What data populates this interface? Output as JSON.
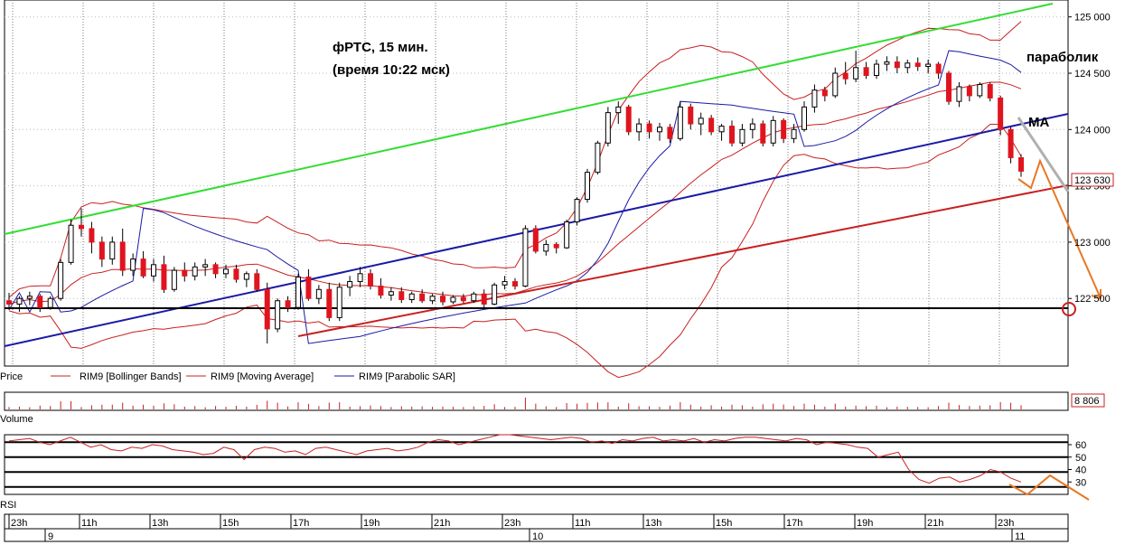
{
  "chart_data": {
    "type": "candlestick",
    "title_line1": "фРТС,  15 мин.",
    "title_line2": "(время  10:22 мск)",
    "annotation_sar": "параболик",
    "annotation_ma": "MA",
    "price_axis": {
      "ylim": [
        121900,
        125150
      ],
      "ticks": [
        "125 000",
        "124 500",
        "124 000",
        "123 500",
        "123 000",
        "122 500"
      ],
      "tick_values": [
        125000,
        124500,
        124000,
        123500,
        123000,
        122500
      ],
      "last_price_label": "123 630",
      "last_price": 123630,
      "marked_level": 122500
    },
    "legend": {
      "price": "Price",
      "bollinger": "RIM9 [Bollinger Bands]",
      "ma": "RIM9 [Moving Average]",
      "sar": "RIM9 [Parabolic SAR]"
    },
    "volume": {
      "label": "Volume",
      "last_label": "8 806"
    },
    "rsi": {
      "label": "RSI",
      "ylim": [
        20,
        68
      ],
      "ticks": [
        "60",
        "50",
        "40",
        "30"
      ],
      "tick_values": [
        60,
        50,
        40,
        30
      ],
      "levels": [
        62,
        50,
        38,
        26
      ],
      "values": [
        63,
        64,
        65,
        62,
        60,
        63,
        66,
        62,
        58,
        60,
        56,
        55,
        58,
        57,
        60,
        59,
        56,
        55,
        54,
        52,
        53,
        58,
        56,
        48,
        56,
        58,
        57,
        54,
        55,
        52,
        57,
        58,
        56,
        54,
        52,
        55,
        56,
        57,
        55,
        56,
        58,
        62,
        64,
        63,
        60,
        62,
        64,
        66,
        68,
        68,
        67,
        66,
        65,
        64,
        65,
        66,
        65,
        62,
        63,
        61,
        64,
        63,
        65,
        66,
        63,
        64,
        63,
        65,
        62,
        64,
        63,
        65,
        66,
        66,
        65,
        64,
        63,
        65,
        64,
        60,
        62,
        61,
        60,
        58,
        57,
        50,
        52,
        54,
        40,
        32,
        29,
        33,
        34,
        30,
        32,
        35,
        40,
        38,
        33,
        30
      ]
    },
    "time_axis": {
      "hour_labels": [
        "23h",
        "11h",
        "13h",
        "15h",
        "17h",
        "19h",
        "21h",
        "23h",
        "11h",
        "13h",
        "15h",
        "17h",
        "19h",
        "21h",
        "23h"
      ],
      "day_labels": [
        "9",
        "10",
        "11"
      ]
    },
    "series": [
      {
        "name": "RIM9",
        "candles": [
          [
            122480,
            122550,
            122400,
            122450
          ],
          [
            122450,
            122520,
            122380,
            122500
          ],
          [
            122500,
            122560,
            122440,
            122520
          ],
          [
            122520,
            122540,
            122380,
            122420
          ],
          [
            122420,
            122520,
            122400,
            122500
          ],
          [
            122500,
            122850,
            122480,
            122820
          ],
          [
            122820,
            123200,
            122800,
            123150
          ],
          [
            123150,
            123300,
            123050,
            123120
          ],
          [
            123120,
            123180,
            122900,
            123000
          ],
          [
            123000,
            123050,
            122780,
            122850
          ],
          [
            122850,
            123050,
            122800,
            123000
          ],
          [
            123000,
            123120,
            122700,
            122750
          ],
          [
            122750,
            122900,
            122700,
            122850
          ],
          [
            122850,
            122920,
            122680,
            122700
          ],
          [
            122700,
            122850,
            122650,
            122800
          ],
          [
            122800,
            122880,
            122550,
            122580
          ],
          [
            122580,
            122780,
            122560,
            122750
          ],
          [
            122750,
            122820,
            122650,
            122700
          ],
          [
            122700,
            122820,
            122660,
            122780
          ],
          [
            122780,
            122850,
            122700,
            122800
          ],
          [
            122800,
            122820,
            122680,
            122720
          ],
          [
            122720,
            122800,
            122680,
            122760
          ],
          [
            122760,
            122800,
            122640,
            122670
          ],
          [
            122670,
            122740,
            122600,
            122720
          ],
          [
            122720,
            122760,
            122560,
            122580
          ],
          [
            122580,
            122640,
            122100,
            122230
          ],
          [
            122230,
            122500,
            122200,
            122480
          ],
          [
            122480,
            122520,
            122380,
            122420
          ],
          [
            122420,
            122720,
            122400,
            122690
          ],
          [
            122690,
            122760,
            122480,
            122500
          ],
          [
            122500,
            122620,
            122450,
            122580
          ],
          [
            122580,
            122640,
            122300,
            122330
          ],
          [
            122330,
            122640,
            122300,
            122600
          ],
          [
            122600,
            122700,
            122520,
            122650
          ],
          [
            122650,
            122780,
            122600,
            122720
          ],
          [
            122720,
            122760,
            122580,
            122610
          ],
          [
            122610,
            122680,
            122500,
            122530
          ],
          [
            122530,
            122600,
            122480,
            122560
          ],
          [
            122560,
            122600,
            122460,
            122490
          ],
          [
            122490,
            122560,
            122460,
            122540
          ],
          [
            122540,
            122580,
            122460,
            122480
          ],
          [
            122480,
            122540,
            122450,
            122520
          ],
          [
            122520,
            122560,
            122440,
            122470
          ],
          [
            122470,
            122530,
            122450,
            122510
          ],
          [
            122510,
            122540,
            122460,
            122480
          ],
          [
            122480,
            122560,
            122460,
            122540
          ],
          [
            122540,
            122580,
            122420,
            122450
          ],
          [
            122450,
            122640,
            122440,
            122620
          ],
          [
            122620,
            122700,
            122580,
            122650
          ],
          [
            122650,
            122680,
            122580,
            122610
          ],
          [
            122610,
            123150,
            122600,
            123120
          ],
          [
            123120,
            123150,
            122900,
            122920
          ],
          [
            122920,
            123020,
            122880,
            122980
          ],
          [
            122980,
            123000,
            122900,
            122950
          ],
          [
            122950,
            123200,
            122940,
            123180
          ],
          [
            123180,
            123400,
            123150,
            123380
          ],
          [
            123380,
            123650,
            123350,
            123620
          ],
          [
            123620,
            123900,
            123600,
            123880
          ],
          [
            123880,
            124200,
            123850,
            124150
          ],
          [
            124150,
            124250,
            124050,
            124200
          ],
          [
            124200,
            124220,
            123950,
            123980
          ],
          [
            123980,
            124100,
            123900,
            124050
          ],
          [
            124050,
            124080,
            123920,
            123980
          ],
          [
            123980,
            124060,
            123900,
            124020
          ],
          [
            124020,
            124050,
            123880,
            123920
          ],
          [
            123920,
            124250,
            123900,
            124200
          ],
          [
            124200,
            124230,
            124000,
            124050
          ],
          [
            124050,
            124150,
            123950,
            124100
          ],
          [
            124100,
            124130,
            123950,
            123980
          ],
          [
            123980,
            124050,
            123900,
            124030
          ],
          [
            124030,
            124080,
            123850,
            123880
          ],
          [
            123880,
            124050,
            123850,
            124000
          ],
          [
            124000,
            124100,
            123920,
            124050
          ],
          [
            124050,
            124080,
            123850,
            123880
          ],
          [
            123880,
            124120,
            123850,
            124080
          ],
          [
            124080,
            124100,
            123880,
            123920
          ],
          [
            123920,
            124050,
            123880,
            124000
          ],
          [
            124000,
            124250,
            123980,
            124200
          ],
          [
            124200,
            124400,
            124150,
            124350
          ],
          [
            124350,
            124380,
            124250,
            124300
          ],
          [
            124300,
            124550,
            124280,
            124500
          ],
          [
            124500,
            124600,
            124400,
            124450
          ],
          [
            124450,
            124700,
            124420,
            124550
          ],
          [
            124550,
            124600,
            124450,
            124480
          ],
          [
            124480,
            124620,
            124450,
            124580
          ],
          [
            124580,
            124650,
            124520,
            124600
          ],
          [
            124600,
            124650,
            124500,
            124550
          ],
          [
            124550,
            124620,
            124500,
            124590
          ],
          [
            124590,
            124640,
            124520,
            124560
          ],
          [
            124560,
            124620,
            124500,
            124580
          ],
          [
            124580,
            124600,
            124450,
            124500
          ],
          [
            124500,
            124520,
            124220,
            124250
          ],
          [
            124250,
            124420,
            124200,
            124380
          ],
          [
            124380,
            124400,
            124250,
            124300
          ],
          [
            124300,
            124420,
            124280,
            124400
          ],
          [
            124400,
            124420,
            124250,
            124280
          ],
          [
            124280,
            124300,
            123950,
            124000
          ],
          [
            124000,
            124020,
            123700,
            123750
          ],
          [
            123750,
            123780,
            123580,
            123630
          ]
        ]
      }
    ]
  }
}
